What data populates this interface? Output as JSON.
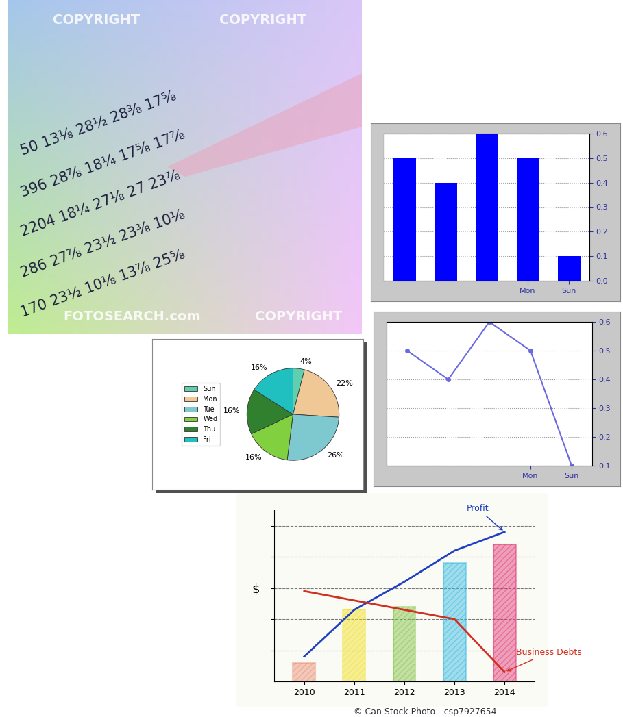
{
  "photo": {
    "table_rows": [
      "50 13⅛ 28½ 28⅜ 17⅝",
      "396 28⅞ 18¼ 17⅝ 17⅞",
      "2204 18¼ 27⅛ 27 23⅞",
      "286 27⅞ 23½ 23⅜ 10⅛",
      "170 23½ 10⅛ 13⅞ 25⅝"
    ],
    "watermarks": [
      "COPYRIGHT",
      "COPYRIGHT",
      "COPYRIGHT",
      "FOTOSEARCH.com"
    ]
  },
  "chart_data": [
    {
      "type": "bar",
      "categories": [
        "Sun",
        "Mon",
        null,
        null,
        null
      ],
      "values": [
        0.1,
        0.5,
        0.6,
        0.4,
        0.5
      ],
      "color": "#0000ff",
      "ylim": [
        0,
        0.6
      ],
      "yticks": [
        {
          "value": 0,
          "label": "0.0"
        },
        0.1,
        0.2,
        0.3,
        0.4,
        0.5,
        0.6
      ],
      "grid": true
    },
    {
      "type": "line",
      "categories": [
        "Sun",
        "Mon",
        null,
        null,
        null
      ],
      "values": [
        0.1,
        0.5,
        0.6,
        0.4,
        0.5
      ],
      "color": "#6a6adf",
      "marker": "o",
      "ylim": [
        0.1,
        0.6
      ],
      "yticks": [
        0.1,
        0.2,
        0.3,
        0.4,
        0.5,
        0.6
      ],
      "grid": true
    },
    {
      "type": "pie",
      "categories": [
        "Sun",
        "Mon",
        "Tue",
        "Wed",
        "Thu",
        "Fri"
      ],
      "values": [
        4,
        22,
        26,
        16,
        16,
        16
      ],
      "value_labels": [
        "4%",
        "22%",
        "26%",
        "16%",
        "16%",
        "16%"
      ],
      "data_labels": true,
      "colors": [
        "#5fcfb0",
        "#f0c896",
        "#7ec8d0",
        "#80d040",
        "#308030",
        "#20c0c0"
      ],
      "legend": "left"
    },
    {
      "type": "bar",
      "categories": [
        "2010",
        "2011",
        "2012",
        "2013",
        "2014"
      ],
      "values": [
        0.6,
        2.3,
        2.4,
        3.8,
        4.4
      ],
      "colors": [
        "#e88a70",
        "#f0e020",
        "#80c040",
        "#30b8e0",
        "#e03070"
      ],
      "series": [
        {
          "name": "Profit",
          "type": "line",
          "color": "#2040c0",
          "values": [
            0.8,
            2.3,
            3.2,
            4.2,
            4.8
          ]
        },
        {
          "name": "Business Debts",
          "type": "line",
          "color": "#d03020",
          "values": [
            2.9,
            2.6,
            2.3,
            2.0,
            0.3
          ]
        }
      ],
      "ylabel": "$",
      "ylim": [
        0,
        5.5
      ],
      "yticks": [
        1,
        2,
        3,
        4,
        5
      ],
      "grid": true,
      "tick_labels": "x"
    }
  ],
  "credit": "© Can Stock Photo - csp7927654"
}
